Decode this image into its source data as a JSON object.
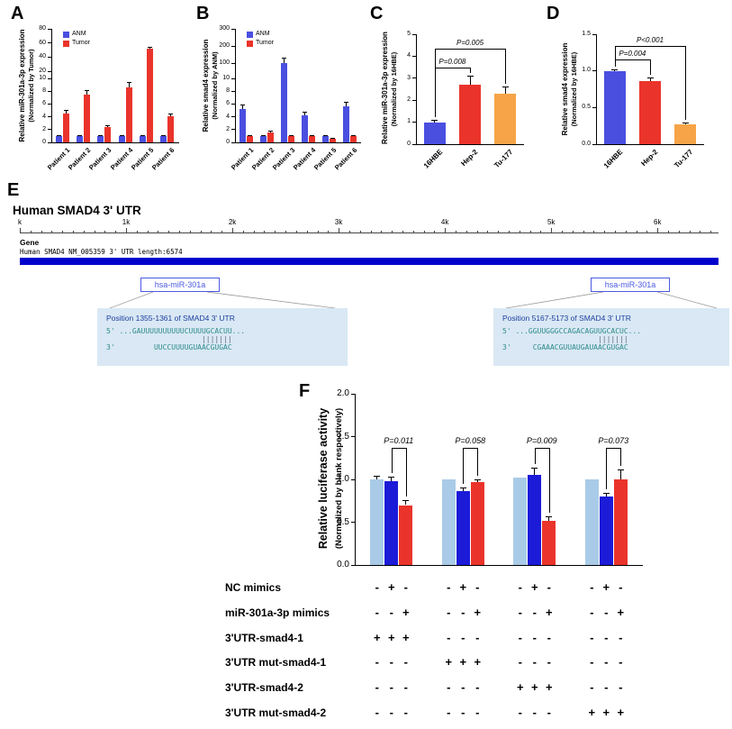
{
  "colors": {
    "blue": "#4a4fe0",
    "red": "#ea342b",
    "orange": "#f6a447",
    "light_blue": "#a9cbe8",
    "dark_blue": "#1b1bd8",
    "gene_bar": "#0000cc",
    "site_box": "#4a5ae0",
    "seq_bg": "#d9e8f4",
    "seq_text": "#2e8b8b",
    "pos_text": "#1d3f9e"
  },
  "panel_letters": {
    "a": "A",
    "b": "B",
    "c": "C",
    "d": "D",
    "e": "E",
    "f": "F"
  },
  "diagram": {
    "title": "Human SMAD4  3' UTR",
    "ruler_labels": [
      "k",
      "1k",
      "2k",
      "3k",
      "4k",
      "5k",
      "6k"
    ],
    "track_name": "Gene",
    "track_desc": "Human SMAD4 NM_005359 3' UTR length:6574",
    "utr_length": 6574,
    "sites": [
      {
        "box_label": "hsa-miR-301a",
        "position_label": "Position 1355-1361 of SMAD4 3' UTR",
        "utr_seq": "5' ...GAUUUUUUUUUUCUUUUGCACUU...",
        "pairing": "                      |||||||",
        "mir_seq": "3'         UUCCUUUUGUAACGUGAC"
      },
      {
        "box_label": "hsa-miR-301a",
        "position_label": "Position 5167-5173 of SMAD4 3' UTR",
        "utr_seq": "5' ...GGUUGGGCCAGACAGUUGCACUC...",
        "pairing": "                      |||||||",
        "mir_seq": "3'     CGAAACGUUAUGAUAACGUGAC"
      }
    ]
  },
  "chart_data": [
    {
      "id": "A",
      "type": "bar",
      "ylabel": "Relative miR-301a-3p expression",
      "ylabel_sub": "(Normalized by Tumor)",
      "categories": [
        "Patient 1",
        "Patient 2",
        "Patient 3",
        "Patient 4",
        "Patient 5",
        "Patient 6"
      ],
      "series": [
        {
          "name": "ANM",
          "color_key": "blue",
          "values": [
            1,
            1,
            1,
            1,
            1,
            1
          ],
          "errors": [
            0.15,
            0.12,
            0.18,
            0.15,
            0.12,
            0.12
          ]
        },
        {
          "name": "Tumor",
          "color_key": "red",
          "values": [
            4.6,
            7.5,
            2.4,
            8.6,
            52,
            4.1
          ],
          "errors": [
            0.5,
            0.7,
            0.35,
            0.9,
            3,
            0.45
          ]
        }
      ],
      "axis_break": 10,
      "ymax": 80,
      "yticks_lower": [
        0,
        2,
        4,
        6,
        8,
        10
      ],
      "yticks_upper": [
        20,
        40,
        60,
        80
      ],
      "legend_position": "upper-left"
    },
    {
      "id": "B",
      "type": "bar",
      "ylabel": "Relative smad4 expression",
      "ylabel_sub": "(Normalized by ANM)",
      "categories": [
        "Patient 1",
        "Patient 2",
        "Patient 3",
        "Patient 4",
        "Patient 5",
        "Patient 6"
      ],
      "series": [
        {
          "name": "ANM",
          "color_key": "blue",
          "values": [
            5.2,
            1.0,
            100,
            4.2,
            1.0,
            5.6
          ],
          "errors": [
            0.8,
            0.15,
            32,
            0.6,
            0.12,
            0.8
          ]
        },
        {
          "name": "Tumor",
          "color_key": "red",
          "values": [
            1.0,
            1.6,
            1.0,
            1.0,
            0.6,
            1.0
          ],
          "errors": [
            0.15,
            0.3,
            0.12,
            0.12,
            0.1,
            0.15
          ]
        }
      ],
      "axis_break": 10,
      "ymax": 300,
      "yticks_lower": [
        0,
        2,
        4,
        6,
        8,
        10
      ],
      "yticks_upper": [
        100,
        200,
        300
      ],
      "legend_position": "upper-left"
    },
    {
      "id": "C",
      "type": "bar",
      "ylabel": "Relative miR-301a-3p expression",
      "ylabel_sub": "(Normalized by 16HBE)",
      "categories": [
        "16HBE",
        "Hep-2",
        "Tu-177"
      ],
      "values": [
        1.0,
        2.7,
        2.3
      ],
      "errors": [
        0.12,
        0.4,
        0.32
      ],
      "bar_colors": [
        "blue",
        "red",
        "orange"
      ],
      "ylim": [
        0,
        5
      ],
      "yticks": [
        "0",
        "1",
        "2",
        "3",
        "4",
        "5"
      ],
      "brackets": [
        {
          "from": 0,
          "to": 1,
          "label": "P=0.008",
          "y": 3.5
        },
        {
          "from": 0,
          "to": 2,
          "label": "P=0.005",
          "y": 4.35
        }
      ]
    },
    {
      "id": "D",
      "type": "bar",
      "ylabel": "Relative smad4 expression",
      "ylabel_sub": "(Normalized by 16HBE)",
      "categories": [
        "16HBE",
        "Hep-2",
        "Tu-177"
      ],
      "values": [
        1.0,
        0.86,
        0.27
      ],
      "errors": [
        0.02,
        0.05,
        0.03
      ],
      "bar_colors": [
        "blue",
        "red",
        "orange"
      ],
      "ylim": [
        0,
        1.5
      ],
      "yticks": [
        "0.0",
        "0.5",
        "1.0",
        "1.5"
      ],
      "brackets": [
        {
          "from": 0,
          "to": 1,
          "label": "P=0.004",
          "y": 1.16
        },
        {
          "from": 0,
          "to": 2,
          "label": "P<0.001",
          "y": 1.34
        }
      ]
    },
    {
      "id": "F",
      "type": "bar",
      "ylabel": "Relative luciferase activity",
      "ylabel_sub": "(Normalized by blank respectively)",
      "series_colors": [
        "light_blue",
        "dark_blue",
        "red"
      ],
      "groups": [
        {
          "values": [
            1.0,
            0.98,
            0.7
          ],
          "errors": [
            0.04,
            0.05,
            0.06
          ],
          "p_label": "P=0.011"
        },
        {
          "values": [
            1.0,
            0.86,
            0.97
          ],
          "errors": [
            0,
            0.05,
            0.03
          ],
          "p_label": "P=0.058"
        },
        {
          "values": [
            1.02,
            1.05,
            0.52
          ],
          "errors": [
            0,
            0.09,
            0.05
          ],
          "p_label": "P=0.009"
        },
        {
          "values": [
            1.0,
            0.8,
            1.0
          ],
          "errors": [
            0,
            0.04,
            0.12
          ],
          "p_label": "P=0.073"
        }
      ],
      "ylim": [
        0,
        2
      ],
      "yticks": [
        "0.0",
        "0.5",
        "1.0",
        "1.5",
        "2.0"
      ],
      "matrix_rows": [
        {
          "label": "NC mimics",
          "cells": [
            "-",
            "+",
            "-",
            "-",
            "+",
            "-",
            "-",
            "+",
            "-",
            "-",
            "+",
            "-"
          ]
        },
        {
          "label": "miR-301a-3p mimics",
          "cells": [
            "-",
            "-",
            "+",
            "-",
            "-",
            "+",
            "-",
            "-",
            "+",
            "-",
            "-",
            "+"
          ]
        },
        {
          "label": "3'UTR-smad4-1",
          "cells": [
            "+",
            "+",
            "+",
            "-",
            "-",
            "-",
            "-",
            "-",
            "-",
            "-",
            "-",
            "-"
          ]
        },
        {
          "label": "3'UTR mut-smad4-1",
          "cells": [
            "-",
            "-",
            "-",
            "+",
            "+",
            "+",
            "-",
            "-",
            "-",
            "-",
            "-",
            "-"
          ]
        },
        {
          "label": "3'UTR-smad4-2",
          "cells": [
            "-",
            "-",
            "-",
            "-",
            "-",
            "-",
            "+",
            "+",
            "+",
            "-",
            "-",
            "-"
          ]
        },
        {
          "label": "3'UTR mut-smad4-2",
          "cells": [
            "-",
            "-",
            "-",
            "-",
            "-",
            "-",
            "-",
            "-",
            "-",
            "+",
            "+",
            "+"
          ]
        }
      ]
    }
  ]
}
